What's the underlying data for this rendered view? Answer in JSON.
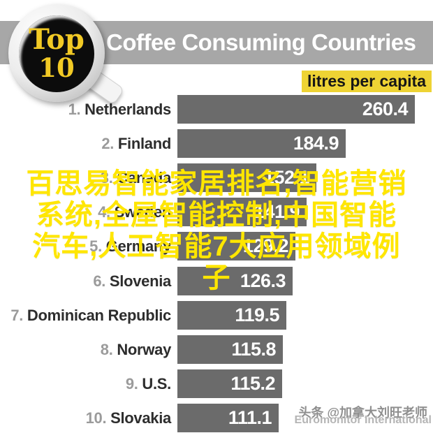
{
  "header": {
    "badge_line1": "Top",
    "badge_line2": "10",
    "title": "Coffee Consuming Countries",
    "unit_label": "litres per capita"
  },
  "chart_data": {
    "type": "bar",
    "orientation": "horizontal",
    "title": "Top 10 Coffee Consuming Countries",
    "xlabel": "litres per capita",
    "ylabel": "",
    "xlim": [
      0,
      265
    ],
    "grid": false,
    "bar_color": "#6b6b6b",
    "value_labels": "inside-right, white",
    "categories": [
      "Netherlands",
      "Finland",
      "Canada",
      "Sweden",
      "Germany",
      "Slovenia",
      "Dominican Republic",
      "Norway",
      "U.S.",
      "Slovakia"
    ],
    "ranks": [
      "1.",
      "2.",
      "3.",
      "4.",
      "5.",
      "6.",
      "7.",
      "8.",
      "9.",
      "10."
    ],
    "values": [
      260.4,
      184.9,
      152.1,
      141.9,
      129.2,
      126.3,
      119.5,
      115.8,
      115.2,
      111.1
    ],
    "source": "Euromonitor International"
  },
  "overlay": {
    "full_text": "百思易智能家居排名,智能营销系统,全屋智能控制,中国智能汽车,人工智能7大应用领域例子",
    "lines": [
      "百思易智能家居排名,智能营销",
      "系统,全屋智能控制,中国智能",
      "汽车,人工智能7大应用领域例",
      "子"
    ],
    "color": "#ffe600"
  },
  "watermark": {
    "byline": "头条 @加拿大刘旺老师",
    "source": "Euromonitor International"
  },
  "colors": {
    "banner_gray": "#a7a7a7",
    "bar_gray": "#6b6b6b",
    "badge_yellow": "#f2ca25",
    "unit_highlight_yellow": "#eed334",
    "overlay_yellow": "#ffe600",
    "rank_gray": "#9b9b9b",
    "country_dark": "#2d2d2d",
    "coffee_black": "#0c0c0c"
  }
}
